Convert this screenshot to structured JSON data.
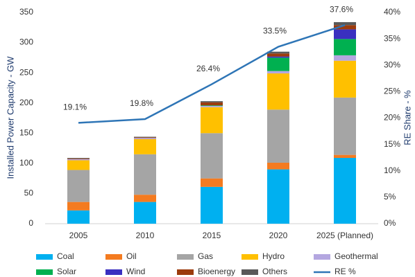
{
  "chart_data": {
    "type": "bar",
    "stacked": true,
    "ylabel": "Installed Power Capacity - GW",
    "y2label": "RE Share - %",
    "categories": [
      "2005",
      "2010",
      "2015",
      "2020",
      "2025 (Planned)"
    ],
    "ylim": [
      0,
      350
    ],
    "yticks": [
      0,
      50,
      100,
      150,
      200,
      250,
      300,
      350
    ],
    "y2lim": [
      0,
      40
    ],
    "y2ticks": [
      {
        "value": 0,
        "label": "0%"
      },
      {
        "value": 5,
        "label": "5%"
      },
      {
        "value": 10,
        "label": "10%"
      },
      {
        "value": 15,
        "label": "15%"
      },
      {
        "value": 20,
        "label": "20%"
      },
      {
        "value": 25,
        "label": "25%"
      },
      {
        "value": 30,
        "label": "30%"
      },
      {
        "value": 35,
        "label": "35%"
      },
      {
        "value": 40,
        "label": "40%"
      }
    ],
    "grid": false,
    "legend": "bottom",
    "series": [
      {
        "name": "Coal",
        "color": "#00b0f0",
        "values": [
          22,
          36,
          61,
          90,
          109
        ]
      },
      {
        "name": "Oil",
        "color": "#f47b20",
        "values": [
          14,
          12,
          14,
          11,
          5
        ]
      },
      {
        "name": "Gas",
        "color": "#a5a5a5",
        "values": [
          53,
          67,
          75,
          88,
          95
        ]
      },
      {
        "name": "Hydro",
        "color": "#ffc000",
        "values": [
          16,
          25,
          43,
          60,
          61
        ]
      },
      {
        "name": "Geothermal",
        "color": "#b4a7e0",
        "values": [
          2,
          2,
          2,
          4,
          9
        ]
      },
      {
        "name": "Solar",
        "color": "#00b050",
        "values": [
          0,
          0,
          1,
          22,
          27
        ]
      },
      {
        "name": "Wind",
        "color": "#3a2fc0",
        "values": [
          0,
          0,
          0,
          2,
          16
        ]
      },
      {
        "name": "Bioenergy",
        "color": "#9c3b0c",
        "values": [
          1,
          1,
          5,
          5,
          7
        ]
      },
      {
        "name": "Others",
        "color": "#595959",
        "values": [
          1,
          1,
          2,
          3,
          5
        ]
      },
      {
        "name": "RE %",
        "color": "#2e75b6",
        "axis": "y2",
        "values": [
          19.1,
          19.8,
          26.4,
          33.5,
          37.6
        ],
        "value_labels": [
          "19.1%",
          "19.8%",
          "26.4%",
          "33.5%",
          "37.6%"
        ]
      }
    ]
  }
}
